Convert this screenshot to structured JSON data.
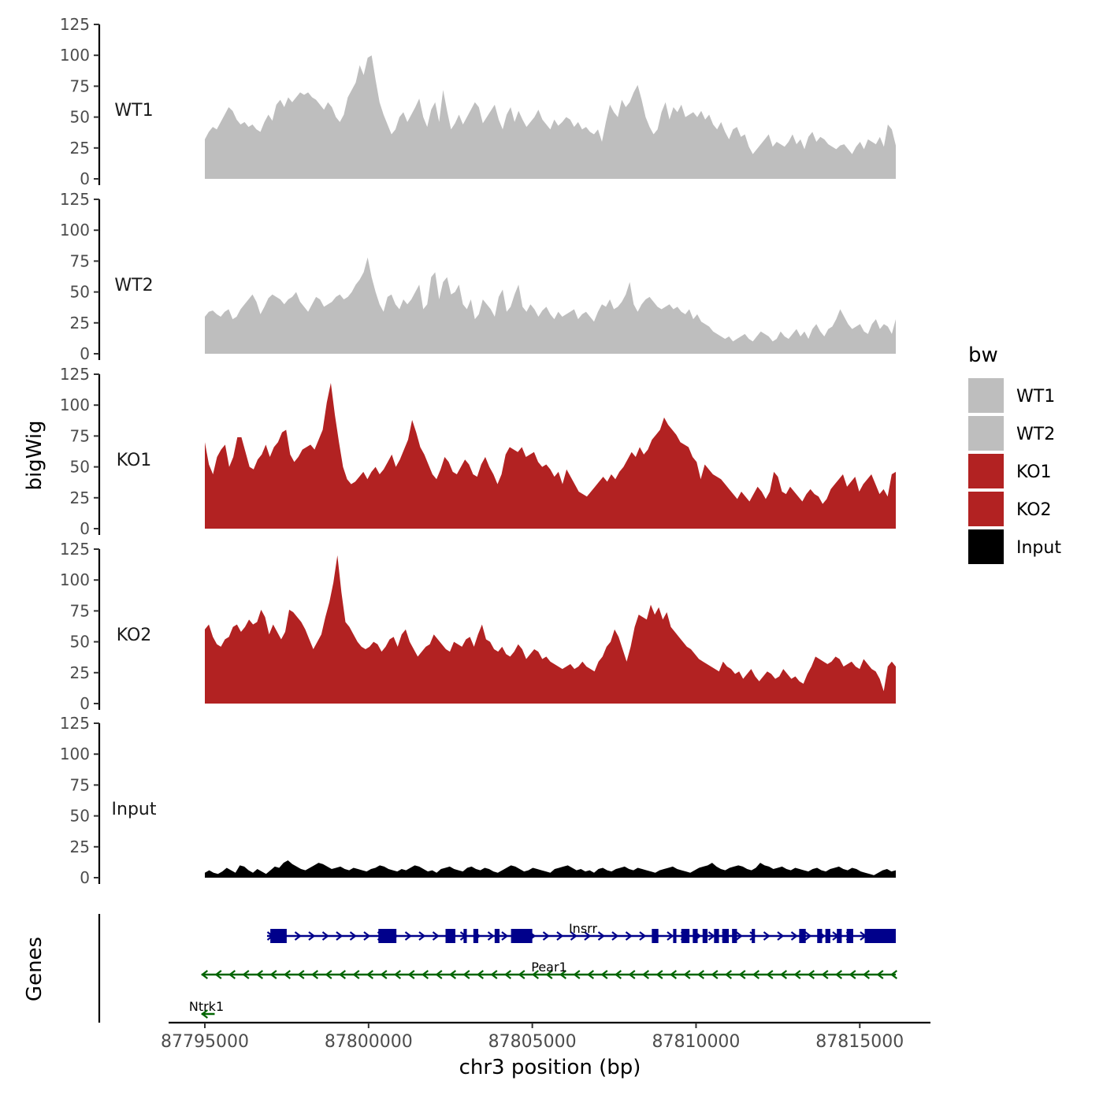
{
  "chart_data": {
    "type": "area",
    "description": "Genome browser style stacked bigWig coverage tracks with gene annotation track",
    "ylabel": "bigWig",
    "xlabel": "chr3 position (bp)",
    "genes_label": "Genes",
    "xlim": [
      87795000,
      87816100
    ],
    "ylim": [
      0,
      125
    ],
    "yticks": [
      0,
      25,
      50,
      75,
      100,
      125
    ],
    "ytick_labels": [
      "0",
      "25",
      "50",
      "75",
      "100",
      "125"
    ],
    "xticks": [
      87795000,
      87800000,
      87805000,
      87810000,
      87815000
    ],
    "xtick_labels": [
      "87795000",
      "87800000",
      "87805000",
      "87810000",
      "87815000"
    ],
    "legend": {
      "title": "bw",
      "position": "right",
      "entries": [
        {
          "label": "WT1",
          "color": "#bebebe"
        },
        {
          "label": "WT2",
          "color": "#bebebe"
        },
        {
          "label": "KO1",
          "color": "#b22222"
        },
        {
          "label": "KO2",
          "color": "#b22222"
        },
        {
          "label": "Input",
          "color": "#000000"
        }
      ]
    },
    "series": [
      {
        "name": "WT1",
        "color": "#bebebe",
        "values": [
          32,
          38,
          42,
          40,
          46,
          52,
          58,
          55,
          48,
          44,
          46,
          42,
          44,
          40,
          38,
          46,
          52,
          47,
          60,
          64,
          58,
          66,
          62,
          66,
          70,
          68,
          70,
          66,
          64,
          60,
          56,
          62,
          58,
          50,
          46,
          52,
          66,
          72,
          78,
          92,
          84,
          98,
          100,
          80,
          62,
          52,
          44,
          36,
          40,
          50,
          54,
          46,
          52,
          58,
          65,
          50,
          42,
          56,
          62,
          46,
          72,
          55,
          40,
          45,
          52,
          44,
          50,
          56,
          62,
          58,
          45,
          50,
          55,
          60,
          48,
          40,
          52,
          58,
          46,
          55,
          48,
          42,
          46,
          50,
          56,
          48,
          44,
          40,
          48,
          43,
          46,
          50,
          48,
          42,
          46,
          40,
          42,
          38,
          36,
          40,
          30,
          46,
          60,
          54,
          50,
          64,
          58,
          62,
          70,
          76,
          64,
          50,
          42,
          36,
          40,
          54,
          62,
          48,
          58,
          54,
          60,
          50,
          52,
          54,
          50,
          55,
          48,
          52,
          44,
          40,
          46,
          38,
          32,
          40,
          42,
          34,
          36,
          26,
          20,
          24,
          28,
          32,
          36,
          26,
          30,
          28,
          26,
          30,
          36,
          28,
          32,
          24,
          34,
          38,
          30,
          34,
          32,
          28,
          26,
          24,
          27,
          28,
          24,
          20,
          26,
          30,
          24,
          32,
          30,
          28,
          34,
          26,
          44,
          40,
          27
        ]
      },
      {
        "name": "WT2",
        "color": "#bebebe",
        "values": [
          30,
          34,
          35,
          32,
          30,
          34,
          36,
          28,
          30,
          36,
          40,
          44,
          48,
          42,
          32,
          38,
          45,
          48,
          46,
          44,
          40,
          44,
          46,
          50,
          42,
          38,
          34,
          40,
          46,
          44,
          38,
          40,
          42,
          46,
          48,
          44,
          46,
          50,
          56,
          60,
          66,
          78,
          62,
          50,
          40,
          34,
          46,
          48,
          40,
          36,
          44,
          40,
          44,
          50,
          56,
          36,
          40,
          62,
          66,
          44,
          58,
          62,
          48,
          50,
          56,
          40,
          36,
          44,
          28,
          32,
          44,
          40,
          36,
          30,
          46,
          52,
          34,
          38,
          48,
          56,
          38,
          34,
          40,
          36,
          30,
          35,
          38,
          32,
          28,
          34,
          30,
          32,
          34,
          36,
          28,
          32,
          34,
          30,
          26,
          34,
          40,
          38,
          44,
          36,
          38,
          42,
          48,
          58,
          40,
          34,
          40,
          44,
          46,
          42,
          38,
          36,
          38,
          40,
          36,
          38,
          34,
          32,
          36,
          28,
          32,
          26,
          24,
          22,
          18,
          16,
          14,
          12,
          14,
          10,
          12,
          14,
          16,
          12,
          10,
          14,
          18,
          16,
          14,
          10,
          12,
          18,
          14,
          12,
          16,
          20,
          14,
          18,
          12,
          20,
          24,
          18,
          14,
          20,
          22,
          28,
          36,
          30,
          24,
          20,
          22,
          24,
          18,
          16,
          24,
          28,
          20,
          24,
          22,
          16,
          28
        ]
      },
      {
        "name": "KO1",
        "color": "#b22222",
        "values": [
          70,
          52,
          44,
          58,
          64,
          68,
          50,
          58,
          74,
          74,
          62,
          50,
          48,
          56,
          60,
          68,
          58,
          66,
          70,
          78,
          80,
          60,
          54,
          58,
          64,
          66,
          68,
          64,
          72,
          80,
          102,
          118,
          92,
          70,
          50,
          40,
          36,
          38,
          42,
          46,
          40,
          46,
          50,
          44,
          48,
          54,
          60,
          50,
          56,
          64,
          72,
          88,
          78,
          66,
          60,
          52,
          44,
          40,
          48,
          58,
          54,
          46,
          44,
          50,
          56,
          52,
          44,
          42,
          52,
          58,
          50,
          44,
          36,
          44,
          60,
          66,
          64,
          62,
          66,
          58,
          60,
          62,
          54,
          50,
          52,
          48,
          42,
          46,
          36,
          48,
          42,
          36,
          30,
          28,
          26,
          30,
          34,
          38,
          42,
          38,
          44,
          40,
          46,
          50,
          56,
          62,
          58,
          66,
          60,
          64,
          72,
          76,
          80,
          90,
          84,
          80,
          76,
          70,
          68,
          66,
          58,
          54,
          40,
          52,
          48,
          44,
          42,
          40,
          36,
          32,
          28,
          24,
          30,
          26,
          22,
          28,
          34,
          30,
          24,
          30,
          46,
          42,
          30,
          28,
          34,
          30,
          26,
          22,
          28,
          32,
          28,
          26,
          20,
          24,
          32,
          36,
          40,
          44,
          34,
          38,
          42,
          30,
          36,
          40,
          44,
          36,
          28,
          32,
          26,
          44,
          46
        ]
      },
      {
        "name": "KO2",
        "color": "#b22222",
        "values": [
          60,
          64,
          54,
          48,
          46,
          52,
          54,
          62,
          64,
          58,
          62,
          68,
          64,
          66,
          76,
          70,
          56,
          64,
          58,
          52,
          58,
          76,
          74,
          70,
          66,
          60,
          52,
          44,
          50,
          56,
          70,
          82,
          98,
          120,
          90,
          66,
          62,
          56,
          50,
          46,
          44,
          46,
          50,
          48,
          42,
          46,
          52,
          54,
          46,
          56,
          60,
          50,
          44,
          38,
          42,
          46,
          48,
          56,
          52,
          48,
          44,
          42,
          50,
          48,
          46,
          52,
          54,
          46,
          56,
          64,
          52,
          50,
          44,
          42,
          46,
          40,
          38,
          42,
          48,
          44,
          36,
          40,
          44,
          42,
          36,
          38,
          34,
          32,
          30,
          28,
          30,
          32,
          28,
          30,
          34,
          30,
          28,
          26,
          34,
          38,
          46,
          50,
          60,
          54,
          44,
          34,
          46,
          62,
          72,
          70,
          68,
          80,
          72,
          78,
          68,
          74,
          62,
          58,
          54,
          50,
          46,
          44,
          40,
          36,
          34,
          32,
          30,
          28,
          26,
          34,
          30,
          28,
          24,
          26,
          20,
          24,
          28,
          22,
          18,
          22,
          26,
          24,
          20,
          22,
          28,
          24,
          20,
          22,
          18,
          16,
          24,
          30,
          38,
          36,
          34,
          32,
          34,
          38,
          36,
          30,
          32,
          34,
          30,
          28,
          36,
          32,
          28,
          26,
          20,
          10,
          30,
          34,
          30
        ]
      },
      {
        "name": "Input",
        "color": "#000000",
        "values": [
          4,
          6,
          4,
          3,
          5,
          8,
          6,
          4,
          10,
          9,
          6,
          4,
          7,
          5,
          3,
          6,
          9,
          8,
          12,
          14,
          11,
          9,
          7,
          6,
          8,
          10,
          12,
          11,
          9,
          7,
          8,
          9,
          7,
          6,
          8,
          7,
          6,
          5,
          7,
          8,
          10,
          9,
          7,
          6,
          5,
          7,
          6,
          8,
          10,
          9,
          7,
          5,
          6,
          4,
          7,
          8,
          9,
          7,
          6,
          5,
          8,
          9,
          7,
          6,
          8,
          7,
          5,
          4,
          6,
          8,
          10,
          9,
          7,
          5,
          6,
          8,
          7,
          6,
          5,
          4,
          7,
          8,
          9,
          10,
          8,
          6,
          7,
          5,
          6,
          4,
          7,
          8,
          6,
          5,
          7,
          8,
          9,
          7,
          6,
          8,
          7,
          6,
          5,
          4,
          6,
          7,
          8,
          9,
          7,
          6,
          5,
          4,
          6,
          8,
          9,
          10,
          12,
          9,
          7,
          6,
          8,
          9,
          10,
          9,
          7,
          6,
          8,
          12,
          10,
          9,
          7,
          8,
          9,
          7,
          6,
          8,
          7,
          6,
          5,
          7,
          8,
          6,
          5,
          7,
          8,
          9,
          7,
          6,
          8,
          7,
          5,
          4,
          3,
          2,
          4,
          6,
          7,
          5,
          6
        ]
      }
    ],
    "genes": [
      {
        "name": "Insrr",
        "start": 87796900,
        "end": 87816100,
        "strand": "+",
        "color": "#00008b",
        "exons": [
          [
            87797000,
            87797500
          ],
          [
            87800300,
            87800850
          ],
          [
            87802350,
            87802650
          ],
          [
            87802900,
            87803000
          ],
          [
            87803200,
            87803350
          ],
          [
            87803850,
            87804000
          ],
          [
            87804350,
            87805000
          ],
          [
            87808650,
            87808850
          ],
          [
            87809300,
            87809400
          ],
          [
            87809550,
            87809800
          ],
          [
            87809900,
            87810050
          ],
          [
            87810200,
            87810350
          ],
          [
            87810550,
            87810700
          ],
          [
            87810800,
            87811000
          ],
          [
            87811100,
            87811250
          ],
          [
            87811700,
            87811800
          ],
          [
            87813150,
            87813350
          ],
          [
            87813700,
            87813850
          ],
          [
            87813950,
            87814100
          ],
          [
            87814300,
            87814450
          ],
          [
            87814600,
            87814800
          ],
          [
            87815150,
            87816100
          ]
        ]
      },
      {
        "name": "Pear1",
        "start": 87794900,
        "end": 87816100,
        "strand": "-",
        "color": "#006400",
        "exons": []
      },
      {
        "name": "Ntrk1",
        "start": 87794900,
        "end": 87795300,
        "strand": "-",
        "color": "#006400",
        "exons": []
      }
    ]
  }
}
